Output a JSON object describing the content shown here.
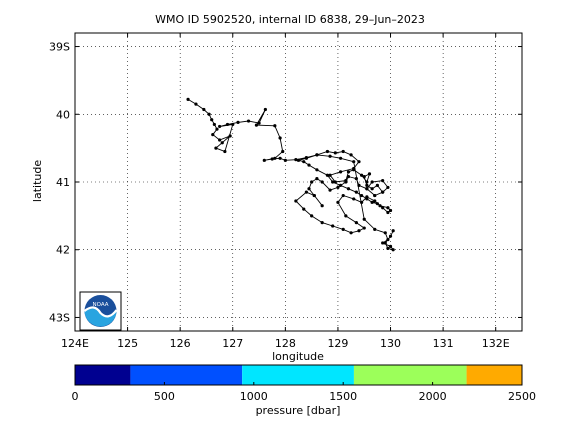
{
  "chart_data": {
    "type": "line",
    "title": "WMO ID 5902520, internal ID 6838, 29–Jun–2023",
    "xlabel": "longitude",
    "ylabel": "latitude",
    "xlim": [
      124,
      132.5
    ],
    "ylim": [
      -43.2,
      -38.8
    ],
    "grid": true,
    "xticks": [
      124,
      125,
      126,
      127,
      128,
      129,
      130,
      131,
      132
    ],
    "xtick_labels": [
      "124E",
      "125",
      "126",
      "127",
      "128",
      "129",
      "130",
      "131",
      "132E"
    ],
    "yticks": [
      -39,
      -40,
      -41,
      -42,
      -43
    ],
    "ytick_labels": [
      "39S",
      "40",
      "41",
      "42",
      "43S"
    ],
    "series": [
      {
        "x": [
          126.15,
          126.3,
          126.45,
          126.55,
          126.6,
          126.65,
          126.7,
          126.62,
          126.75,
          126.95,
          126.8,
          126.68,
          126.85,
          127.0,
          126.75,
          126.9,
          127.1,
          127.3,
          127.5,
          127.62,
          127.45,
          127.8,
          127.9,
          127.95,
          127.8,
          127.6,
          127.75,
          127.9,
          128.0,
          128.2,
          128.4,
          128.6,
          128.8,
          128.95,
          129.1,
          129.25,
          129.4,
          129.3,
          129.05,
          128.85,
          128.95,
          129.15,
          129.2,
          129.3,
          129.45,
          129.55,
          129.6,
          129.5,
          129.55,
          129.65,
          129.75,
          129.85,
          129.7,
          129.55,
          129.65,
          129.85,
          129.95,
          129.85,
          129.7,
          129.55,
          129.4,
          129.35,
          129.2,
          129.15,
          129.0,
          128.85,
          128.7,
          128.6,
          128.5,
          128.45,
          128.55,
          128.7,
          128.55,
          128.4,
          128.2,
          128.35,
          128.5,
          128.7,
          128.9,
          129.1,
          129.25,
          129.4,
          129.5,
          129.35,
          129.15,
          129.0,
          129.1,
          129.3,
          129.45,
          129.55,
          129.7,
          129.8,
          129.95,
          130.0,
          129.95,
          129.85,
          129.75,
          129.65,
          129.55,
          129.45,
          129.35,
          129.2,
          129.05,
          128.9,
          128.8,
          128.6,
          128.45,
          128.35,
          128.25,
          128.4,
          128.6,
          128.85,
          129.05,
          129.3,
          129.5,
          129.7,
          129.9,
          129.95,
          129.85,
          130.0,
          130.05,
          129.95,
          129.9,
          130.0,
          130.05
        ],
        "y": [
          -39.78,
          -39.85,
          -39.93,
          -40.0,
          -40.08,
          -40.15,
          -40.22,
          -40.3,
          -40.38,
          -40.32,
          -40.42,
          -40.5,
          -40.55,
          -40.15,
          -40.18,
          -40.15,
          -40.12,
          -40.1,
          -40.13,
          -39.93,
          -40.16,
          -40.17,
          -40.35,
          -40.55,
          -40.65,
          -40.68,
          -40.66,
          -40.65,
          -40.68,
          -40.67,
          -40.64,
          -40.6,
          -40.55,
          -40.57,
          -40.55,
          -40.6,
          -40.7,
          -40.8,
          -40.85,
          -40.9,
          -41.0,
          -40.98,
          -40.85,
          -40.82,
          -40.9,
          -41.0,
          -40.88,
          -40.92,
          -41.05,
          -41.1,
          -41.05,
          -41.15,
          -41.2,
          -41.1,
          -41.0,
          -40.98,
          -41.08,
          -41.15,
          -41.2,
          -41.1,
          -41.05,
          -40.95,
          -40.92,
          -41.0,
          -41.08,
          -41.12,
          -41.0,
          -40.95,
          -41.0,
          -41.1,
          -41.2,
          -41.35,
          -41.2,
          -41.15,
          -41.28,
          -41.4,
          -41.5,
          -41.6,
          -41.65,
          -41.7,
          -41.75,
          -41.72,
          -41.68,
          -41.6,
          -41.5,
          -41.3,
          -41.2,
          -41.25,
          -41.3,
          -41.22,
          -41.28,
          -41.35,
          -41.38,
          -41.42,
          -41.45,
          -41.38,
          -41.32,
          -41.3,
          -41.25,
          -41.2,
          -41.15,
          -41.1,
          -41.05,
          -41.0,
          -40.9,
          -40.82,
          -40.75,
          -40.7,
          -40.68,
          -40.65,
          -40.6,
          -40.62,
          -40.65,
          -40.7,
          -41.55,
          -41.7,
          -41.75,
          -41.85,
          -41.9,
          -41.95,
          -42.0,
          -41.98,
          -41.9,
          -41.8,
          -41.72
        ],
        "marker": "dot",
        "color": "#000000"
      }
    ],
    "colorbar": {
      "label": "pressure [dbar]",
      "range": [
        0,
        2500
      ],
      "tick_values": [
        0,
        500,
        1000,
        1500,
        2000,
        2500
      ],
      "tick_labels": [
        "0",
        "500",
        "1000",
        "1500",
        "2000",
        "2500"
      ],
      "bands": [
        {
          "from": 0,
          "to": 310,
          "color": "#000090"
        },
        {
          "from": 310,
          "to": 935,
          "color": "#0050ff"
        },
        {
          "from": 935,
          "to": 1560,
          "color": "#00e6ff"
        },
        {
          "from": 1560,
          "to": 2190,
          "color": "#9cff5a"
        },
        {
          "from": 2190,
          "to": 2500,
          "color": "#ffaa00"
        }
      ]
    },
    "logo": {
      "icon": "noaa-logo-icon",
      "text": "NOAA"
    }
  }
}
